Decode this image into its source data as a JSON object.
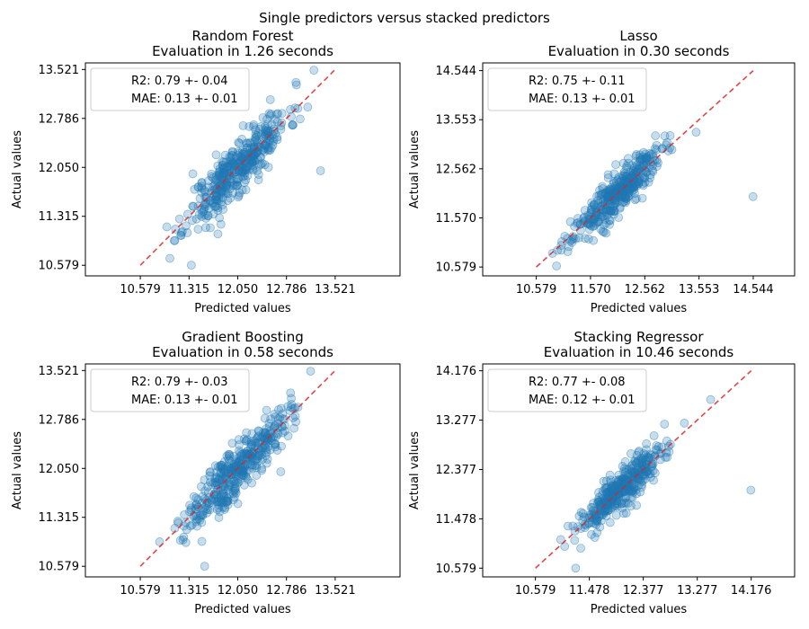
{
  "figure": {
    "suptitle": "Single predictors versus stacked predictors"
  },
  "style": {
    "point_color": "#1f77b4",
    "line_color": "#d62728"
  },
  "chart_data": [
    {
      "type": "scatter",
      "title_line1": "Random Forest",
      "title_line2": "Evaluation in 1.26 seconds",
      "xlabel": "Predicted values",
      "ylabel": "Actual values",
      "ticks": [
        "10.579",
        "11.315",
        "12.050",
        "12.786",
        "13.521"
      ],
      "tick_values": [
        10.579,
        11.315,
        12.05,
        12.786,
        13.521
      ],
      "xlim": [
        9.75,
        14.5
      ],
      "ylim": [
        10.42,
        13.62
      ],
      "legend": [
        "R2: 0.79 +- 0.04",
        "MAE: 0.13 +- 0.01"
      ],
      "center": 12.05,
      "spread": 0.38,
      "noise": 0.2,
      "n_points": 400,
      "outliers": [
        [
          11.1,
          10.95
        ],
        [
          11.35,
          10.58
        ],
        [
          13.3,
          12.0
        ],
        [
          13.2,
          13.51
        ],
        [
          11.75,
          11.05
        ]
      ],
      "seed": 11
    },
    {
      "type": "scatter",
      "title_line1": "Lasso",
      "title_line2": "Evaluation in 0.30 seconds",
      "xlabel": "Predicted values",
      "ylabel": "Actual values",
      "ticks": [
        "10.579",
        "11.570",
        "12.562",
        "13.553",
        "14.544"
      ],
      "tick_values": [
        10.579,
        11.57,
        12.562,
        13.553,
        14.544
      ],
      "xlim": [
        9.6,
        15.3
      ],
      "ylim": [
        10.4,
        14.7
      ],
      "legend": [
        "R2: 0.75 +- 0.11",
        "MAE: 0.13 +- 0.01"
      ],
      "center": 12.05,
      "spread": 0.4,
      "noise": 0.2,
      "n_points": 400,
      "outliers": [
        [
          14.54,
          12.0
        ],
        [
          10.95,
          10.6
        ],
        [
          13.5,
          13.3
        ],
        [
          11.1,
          11.2
        ]
      ],
      "seed": 23
    },
    {
      "type": "scatter",
      "title_line1": "Gradient Boosting",
      "title_line2": "Evaluation in 0.58 seconds",
      "xlabel": "Predicted values",
      "ylabel": "Actual values",
      "ticks": [
        "10.579",
        "11.315",
        "12.050",
        "12.786",
        "13.521"
      ],
      "tick_values": [
        10.579,
        11.315,
        12.05,
        12.786,
        13.521
      ],
      "xlim": [
        9.75,
        14.5
      ],
      "ylim": [
        10.42,
        13.62
      ],
      "legend": [
        "R2: 0.79 +- 0.03",
        "MAE: 0.13 +- 0.01"
      ],
      "center": 12.05,
      "spread": 0.38,
      "noise": 0.19,
      "n_points": 400,
      "outliers": [
        [
          11.55,
          10.58
        ],
        [
          11.1,
          11.15
        ],
        [
          13.15,
          13.51
        ],
        [
          12.7,
          12.0
        ]
      ],
      "seed": 37
    },
    {
      "type": "scatter",
      "title_line1": "Stacking Regressor",
      "title_line2": "Evaluation in 10.46 seconds",
      "xlabel": "Predicted values",
      "ylabel": "Actual values",
      "ticks": [
        "10.579",
        "11.478",
        "12.377",
        "13.277",
        "14.176"
      ],
      "tick_values": [
        10.579,
        11.478,
        12.377,
        13.277,
        14.176
      ],
      "xlim": [
        9.7,
        14.9
      ],
      "ylim": [
        10.42,
        14.3
      ],
      "legend": [
        "R2: 0.77 +- 0.08",
        "MAE: 0.12 +- 0.01"
      ],
      "center": 12.05,
      "spread": 0.37,
      "noise": 0.18,
      "n_points": 400,
      "outliers": [
        [
          14.17,
          12.0
        ],
        [
          11.25,
          10.58
        ],
        [
          13.5,
          13.65
        ],
        [
          11.0,
          11.1
        ]
      ],
      "seed": 53
    }
  ]
}
